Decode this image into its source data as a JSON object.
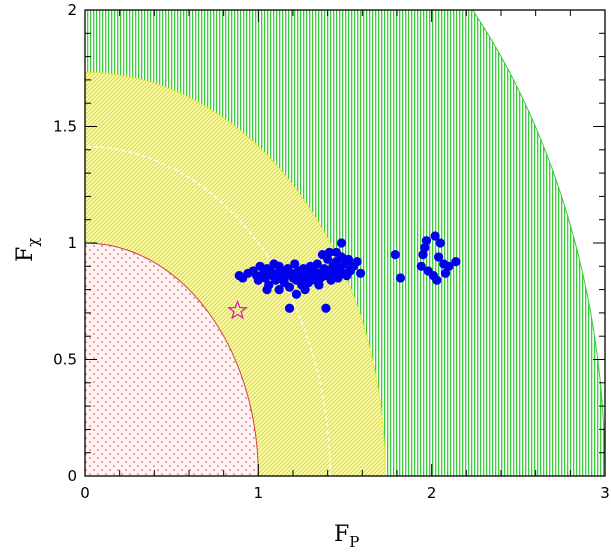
{
  "chart_data": {
    "type": "scatter",
    "title": "",
    "xlabel": "F",
    "xlabel_sub": "P",
    "ylabel": "F",
    "ylabel_sub": "χ",
    "xlim": [
      0,
      3
    ],
    "ylim": [
      0,
      2
    ],
    "x_ticks": [
      {
        "value": 0,
        "label": "0"
      },
      {
        "value": 1,
        "label": "1"
      },
      {
        "value": 2,
        "label": "2"
      },
      {
        "value": 3,
        "label": "3"
      }
    ],
    "y_ticks": [
      {
        "value": 0,
        "label": "0"
      },
      {
        "value": 0.5,
        "label": "0.5"
      },
      {
        "value": 1,
        "label": "1"
      },
      {
        "value": 1.5,
        "label": "1.5"
      },
      {
        "value": 2,
        "label": "2"
      }
    ],
    "grid": false,
    "legend": "none",
    "regions": [
      {
        "shape": "quarter-circle",
        "radius": 3,
        "color": "#3ccd3c",
        "pattern": "vertical-dots"
      },
      {
        "shape": "quarter-circle",
        "radius": 1.732,
        "color": "#e8e830",
        "pattern": "diagonal-hatch"
      },
      {
        "shape": "quarter-circle",
        "radius": 1,
        "color": "#d04040",
        "pattern": "sparse-dots"
      }
    ],
    "reference_curves": [
      {
        "shape": "quarter-circle-dashed",
        "radius": 1.414,
        "color": "#ffffff"
      }
    ],
    "series": [
      {
        "marker": "filled-circle",
        "color": "#0000ee",
        "points": [
          [
            0.89,
            0.86
          ],
          [
            0.91,
            0.85
          ],
          [
            0.94,
            0.87
          ],
          [
            0.97,
            0.88
          ],
          [
            0.99,
            0.86
          ],
          [
            1.0,
            0.84
          ],
          [
            1.01,
            0.9
          ],
          [
            1.03,
            0.87
          ],
          [
            1.04,
            0.85
          ],
          [
            1.05,
            0.89
          ],
          [
            1.06,
            0.82
          ],
          [
            1.07,
            0.88
          ],
          [
            1.08,
            0.86
          ],
          [
            1.09,
            0.91
          ],
          [
            1.1,
            0.84
          ],
          [
            1.11,
            0.87
          ],
          [
            1.12,
            0.8
          ],
          [
            1.12,
            0.9
          ],
          [
            1.13,
            0.85
          ],
          [
            1.14,
            0.88
          ],
          [
            1.15,
            0.83
          ],
          [
            1.16,
            0.86
          ],
          [
            1.17,
            0.89
          ],
          [
            1.18,
            0.81
          ],
          [
            1.19,
            0.87
          ],
          [
            1.2,
            0.85
          ],
          [
            1.21,
            0.91
          ],
          [
            1.22,
            0.84
          ],
          [
            1.22,
            0.78
          ],
          [
            1.23,
            0.88
          ],
          [
            1.24,
            0.86
          ],
          [
            1.25,
            0.82
          ],
          [
            1.26,
            0.89
          ],
          [
            1.27,
            0.85
          ],
          [
            1.28,
            0.87
          ],
          [
            1.29,
            0.83
          ],
          [
            1.3,
            0.9
          ],
          [
            1.31,
            0.86
          ],
          [
            1.32,
            0.88
          ],
          [
            1.33,
            0.84
          ],
          [
            1.34,
            0.91
          ],
          [
            1.35,
            0.87
          ],
          [
            1.36,
            0.85
          ],
          [
            1.37,
            0.95
          ],
          [
            1.38,
            0.89
          ],
          [
            1.39,
            0.86
          ],
          [
            1.4,
            0.93
          ],
          [
            1.41,
            0.88
          ],
          [
            1.42,
            0.84
          ],
          [
            1.43,
            0.9
          ],
          [
            1.44,
            0.87
          ],
          [
            1.45,
            0.92
          ],
          [
            1.46,
            0.85
          ],
          [
            1.47,
            0.89
          ],
          [
            1.48,
            0.94
          ],
          [
            1.49,
            0.87
          ],
          [
            1.5,
            0.91
          ],
          [
            1.51,
            0.86
          ],
          [
            1.52,
            0.93
          ],
          [
            1.53,
            0.88
          ],
          [
            1.55,
            0.9
          ],
          [
            1.57,
            0.92
          ],
          [
            1.59,
            0.87
          ],
          [
            1.48,
            1.0
          ],
          [
            1.45,
            0.96
          ],
          [
            1.41,
            0.96
          ],
          [
            1.35,
            0.82
          ],
          [
            1.27,
            0.8
          ],
          [
            1.05,
            0.8
          ],
          [
            1.18,
            0.72
          ],
          [
            1.39,
            0.72
          ],
          [
            1.79,
            0.95
          ],
          [
            1.82,
            0.85
          ],
          [
            1.94,
            0.9
          ],
          [
            1.95,
            0.95
          ],
          [
            1.96,
            0.98
          ],
          [
            1.97,
            1.01
          ],
          [
            1.98,
            0.88
          ],
          [
            2.01,
            0.86
          ],
          [
            2.02,
            1.03
          ],
          [
            2.03,
            0.84
          ],
          [
            2.04,
            0.94
          ],
          [
            2.05,
            1.0
          ],
          [
            2.07,
            0.91
          ],
          [
            2.08,
            0.87
          ],
          [
            2.1,
            0.9
          ],
          [
            2.14,
            0.92
          ]
        ]
      },
      {
        "marker": "open-star",
        "color": "#dd22aa",
        "points": [
          [
            0.88,
            0.71
          ]
        ]
      }
    ]
  }
}
